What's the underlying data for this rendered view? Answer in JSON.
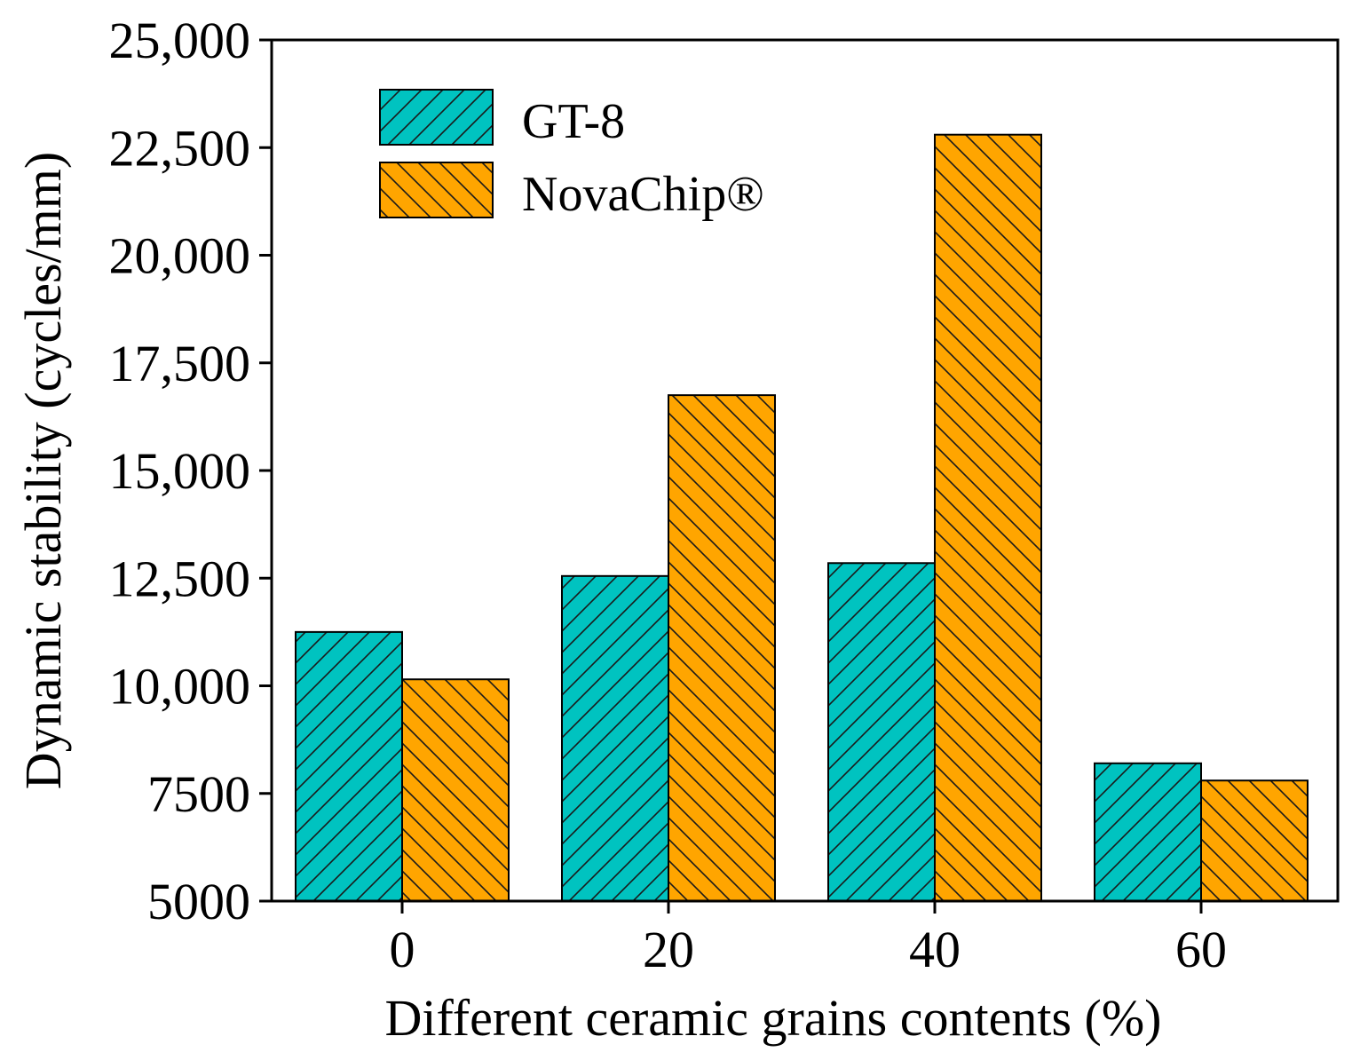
{
  "chart_data": {
    "type": "bar",
    "title": "",
    "xlabel": "Different ceramic grains contents (%)",
    "ylabel": "Dynamic stability (cycles/mm)",
    "categories": [
      "0",
      "20",
      "40",
      "60"
    ],
    "ylim": [
      5000,
      25000
    ],
    "yticks": [
      5000,
      7500,
      10000,
      12500,
      15000,
      17500,
      20000,
      22500,
      25000
    ],
    "ytick_labels": [
      "5000",
      "7500",
      "10,000",
      "12,500",
      "15,000",
      "17,500",
      "20,000",
      "22,500",
      "25,000"
    ],
    "grid": false,
    "legend_position": "top-left",
    "series": [
      {
        "name": "GT-8",
        "values": [
          11250,
          12550,
          12850,
          8200
        ],
        "color": "#00C3C0",
        "hatch": "forward-diagonal"
      },
      {
        "name": "NovaChip®",
        "values": [
          10150,
          16750,
          22800,
          7800
        ],
        "color": "#FFA500",
        "hatch": "back-diagonal"
      }
    ]
  }
}
